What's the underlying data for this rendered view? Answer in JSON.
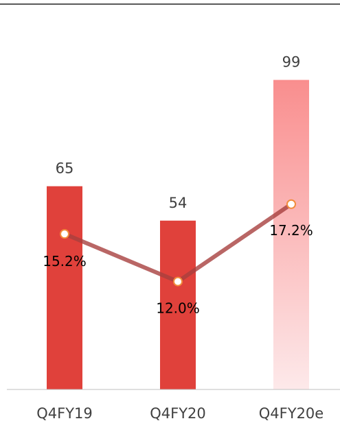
{
  "chart_data": {
    "type": "bar",
    "categories": [
      "Q4FY19",
      "Q4FY20",
      "Q4FY20e"
    ],
    "series": [
      {
        "type": "bar",
        "values": [
          65,
          54,
          99
        ]
      },
      {
        "type": "line",
        "values": [
          15.2,
          12.0,
          17.2
        ],
        "labels": [
          "15.2%",
          "12.0%",
          "17.2%"
        ]
      }
    ],
    "bar_labels": [
      "65",
      "54",
      "99"
    ],
    "title": "",
    "xlabel": "",
    "ylabel": "",
    "ylim": [
      0,
      100
    ],
    "line_ylim": [
      0,
      20
    ],
    "grid": false,
    "legend": "none",
    "colors": {
      "bar": "#e0413b",
      "bar_estimate_top": "#f98e8e",
      "bar_estimate_bottom": "#fde9ea",
      "line": "#a8403f",
      "marker_fill": "#ffffff",
      "marker_stroke": "#f28c3b",
      "axis": "#bfbfbf",
      "top_rule": "#222222"
    }
  }
}
